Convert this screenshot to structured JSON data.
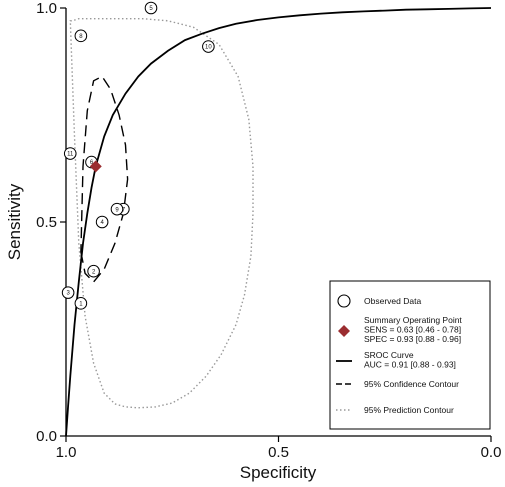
{
  "chart_data": {
    "type": "scatter",
    "title": "",
    "xlabel": "Specificity",
    "ylabel": "Sensitivity",
    "xlim": [
      1.0,
      0.0
    ],
    "ylim": [
      0.0,
      1.0
    ],
    "x_reversed": true,
    "x_ticks": [
      {
        "value": 1.0,
        "label": "1.0"
      },
      {
        "value": 0.5,
        "label": "0.5"
      },
      {
        "value": 0.0,
        "label": "0.0"
      }
    ],
    "y_ticks": [
      {
        "value": 0.0,
        "label": "0.0"
      },
      {
        "value": 0.5,
        "label": "0.5"
      },
      {
        "value": 1.0,
        "label": "1.0"
      }
    ],
    "grid": false,
    "legend_position": "bottom-right",
    "observed_data": [
      {
        "label": "1",
        "spec": 0.965,
        "sens": 0.31
      },
      {
        "label": "2",
        "spec": 0.935,
        "sens": 0.385
      },
      {
        "label": "3",
        "spec": 0.995,
        "sens": 0.335
      },
      {
        "label": "4",
        "spec": 0.915,
        "sens": 0.5
      },
      {
        "label": "5",
        "spec": 0.8,
        "sens": 1.0
      },
      {
        "label": "6",
        "spec": 0.94,
        "sens": 0.64
      },
      {
        "label": "7",
        "spec": 0.865,
        "sens": 0.53
      },
      {
        "label": "8",
        "spec": 0.965,
        "sens": 0.935
      },
      {
        "label": "9",
        "spec": 0.88,
        "sens": 0.53
      },
      {
        "label": "10",
        "spec": 0.665,
        "sens": 0.91
      },
      {
        "label": "11",
        "spec": 0.99,
        "sens": 0.66
      }
    ],
    "summary_point": {
      "spec": 0.93,
      "sens": 0.63
    },
    "sroc_curve": {
      "spec": [
        1.0,
        0.995,
        0.99,
        0.98,
        0.97,
        0.96,
        0.95,
        0.94,
        0.93,
        0.91,
        0.89,
        0.86,
        0.83,
        0.8,
        0.76,
        0.72,
        0.68,
        0.64,
        0.6,
        0.55,
        0.5,
        0.45,
        0.4,
        0.35,
        0.3,
        0.25,
        0.2,
        0.15,
        0.1,
        0.05,
        0.0
      ],
      "sens": [
        0.0,
        0.07,
        0.14,
        0.26,
        0.36,
        0.45,
        0.52,
        0.58,
        0.63,
        0.7,
        0.75,
        0.8,
        0.84,
        0.87,
        0.9,
        0.925,
        0.94,
        0.953,
        0.963,
        0.972,
        0.978,
        0.983,
        0.987,
        0.99,
        0.992,
        0.994,
        0.996,
        0.997,
        0.998,
        0.999,
        1.0
      ]
    },
    "confidence_contour": {
      "spec": [
        0.965,
        0.955,
        0.935,
        0.91,
        0.885,
        0.865,
        0.855,
        0.86,
        0.875,
        0.895,
        0.915,
        0.935,
        0.95,
        0.96,
        0.965
      ],
      "sens": [
        0.43,
        0.38,
        0.36,
        0.39,
        0.45,
        0.52,
        0.6,
        0.68,
        0.75,
        0.81,
        0.84,
        0.83,
        0.76,
        0.63,
        0.43
      ]
    },
    "prediction_contour": {
      "spec": [
        0.99,
        0.985,
        0.97,
        0.95,
        0.92,
        0.88,
        0.82,
        0.76,
        0.7,
        0.64,
        0.595,
        0.57,
        0.56,
        0.56,
        0.565,
        0.58,
        0.6,
        0.635,
        0.67,
        0.71,
        0.75,
        0.79,
        0.83,
        0.86,
        0.885,
        0.91,
        0.935,
        0.955,
        0.97,
        0.98,
        0.99
      ],
      "sens": [
        0.97,
        0.97,
        0.975,
        0.975,
        0.975,
        0.975,
        0.975,
        0.97,
        0.955,
        0.915,
        0.84,
        0.74,
        0.63,
        0.52,
        0.42,
        0.33,
        0.26,
        0.19,
        0.14,
        0.1,
        0.077,
        0.068,
        0.066,
        0.068,
        0.075,
        0.1,
        0.17,
        0.28,
        0.45,
        0.7,
        0.97
      ]
    },
    "legend": [
      {
        "kind": "circle",
        "lines": [
          "Observed Data"
        ]
      },
      {
        "kind": "diamond",
        "lines": [
          "Summary Operating Point",
          "SENS = 0.63 [0.46 - 0.78]",
          "SPEC = 0.93 [0.88 - 0.96]"
        ]
      },
      {
        "kind": "solid",
        "lines": [
          "SROC Curve",
          "AUC = 0.91 [0.88 - 0.93]"
        ]
      },
      {
        "kind": "dashed",
        "lines": [
          "95% Confidence Contour"
        ]
      },
      {
        "kind": "dotted",
        "lines": [
          "95% Prediction Contour"
        ]
      }
    ],
    "colors": {
      "summary_point": "#9b2d30",
      "lines": "#000000",
      "prediction": "#999999"
    }
  }
}
